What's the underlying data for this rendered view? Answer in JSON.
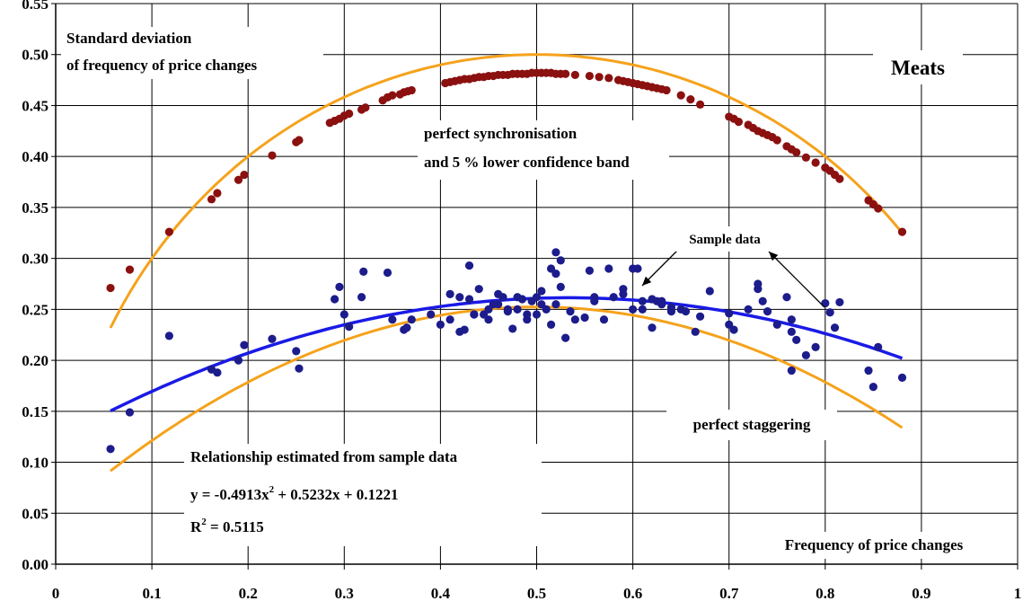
{
  "chart_data": {
    "type": "scatter",
    "title": "Meats",
    "ylabel_lines": [
      "Standard deviation",
      "of frequency of price changes"
    ],
    "xlabel": "Frequency of price changes",
    "xlim": [
      0,
      1
    ],
    "ylim": [
      0,
      0.55
    ],
    "grid": true,
    "x_ticks": [
      "0",
      "0.1",
      "0.2",
      "0.3",
      "0.4",
      "0.5",
      "0.6",
      "0.7",
      "0.8",
      "0.9",
      "1"
    ],
    "y_ticks": [
      "0.00",
      "0.05",
      "0.10",
      "0.15",
      "0.20",
      "0.25",
      "0.30",
      "0.35",
      "0.40",
      "0.45",
      "0.50",
      "0.55"
    ],
    "colors": {
      "sync_points": "#8b1010",
      "sample_points": "#1c1c8c",
      "theory_curves": "#f5a21b",
      "fit_curve": "#1a1ae6"
    },
    "annotations": {
      "sync_line1": "perfect synchronisation",
      "sync_line2": "and 5 % lower confidence band",
      "sample": "Sample data",
      "stagger": "perfect staggering",
      "fit_title": "Relationship estimated from sample data",
      "fit_eq_a": "y = -0.4913x",
      "fit_eq_sup": "2",
      "fit_eq_b": " + 0.5232x + 0.1221",
      "r2_a": "R",
      "r2_sup": "2",
      "r2_b": " = 0.5115"
    },
    "curves": {
      "synchronisation": "sqrt(x(1-x))",
      "staggering": "fitted",
      "fit": "-0.4913x^2 + 0.5232x + 0.1221",
      "x_range": [
        0.057,
        0.88
      ]
    },
    "series": [
      {
        "role": "synchronisation_band",
        "x": [
          0.057,
          0.077,
          0.118,
          0.162,
          0.168,
          0.19,
          0.196,
          0.225,
          0.25,
          0.253,
          0.285,
          0.29,
          0.295,
          0.3,
          0.305,
          0.318,
          0.322,
          0.34,
          0.345,
          0.35,
          0.358,
          0.362,
          0.366,
          0.37,
          0.405,
          0.41,
          0.415,
          0.42,
          0.425,
          0.43,
          0.435,
          0.44,
          0.445,
          0.45,
          0.455,
          0.46,
          0.465,
          0.47,
          0.475,
          0.48,
          0.485,
          0.49,
          0.495,
          0.5,
          0.505,
          0.51,
          0.515,
          0.52,
          0.525,
          0.53,
          0.54,
          0.555,
          0.565,
          0.575,
          0.585,
          0.59,
          0.595,
          0.6,
          0.605,
          0.61,
          0.615,
          0.62,
          0.625,
          0.63,
          0.635,
          0.65,
          0.66,
          0.67,
          0.7,
          0.705,
          0.71,
          0.72,
          0.725,
          0.73,
          0.735,
          0.74,
          0.745,
          0.75,
          0.76,
          0.765,
          0.77,
          0.78,
          0.79,
          0.8,
          0.805,
          0.81,
          0.815,
          0.845,
          0.85,
          0.855,
          0.88
        ],
        "y": [
          0.271,
          0.289,
          0.326,
          0.358,
          0.364,
          0.377,
          0.382,
          0.401,
          0.414,
          0.416,
          0.433,
          0.435,
          0.437,
          0.44,
          0.442,
          0.446,
          0.448,
          0.455,
          0.458,
          0.46,
          0.461,
          0.463,
          0.464,
          0.465,
          0.472,
          0.473,
          0.474,
          0.475,
          0.476,
          0.476,
          0.477,
          0.478,
          0.478,
          0.479,
          0.479,
          0.48,
          0.48,
          0.48,
          0.481,
          0.481,
          0.481,
          0.481,
          0.482,
          0.482,
          0.482,
          0.482,
          0.482,
          0.481,
          0.481,
          0.481,
          0.48,
          0.479,
          0.478,
          0.477,
          0.475,
          0.474,
          0.473,
          0.472,
          0.471,
          0.47,
          0.469,
          0.468,
          0.467,
          0.466,
          0.465,
          0.46,
          0.456,
          0.451,
          0.439,
          0.437,
          0.434,
          0.431,
          0.428,
          0.425,
          0.423,
          0.421,
          0.419,
          0.416,
          0.41,
          0.407,
          0.404,
          0.399,
          0.394,
          0.389,
          0.386,
          0.382,
          0.378,
          0.357,
          0.353,
          0.349,
          0.326
        ]
      },
      {
        "role": "sample_data",
        "x": [
          0.057,
          0.077,
          0.118,
          0.162,
          0.168,
          0.19,
          0.196,
          0.225,
          0.25,
          0.253,
          0.29,
          0.295,
          0.3,
          0.305,
          0.318,
          0.32,
          0.345,
          0.35,
          0.362,
          0.37,
          0.365,
          0.4,
          0.41,
          0.42,
          0.42,
          0.425,
          0.43,
          0.435,
          0.44,
          0.445,
          0.45,
          0.455,
          0.46,
          0.465,
          0.47,
          0.475,
          0.48,
          0.485,
          0.49,
          0.495,
          0.5,
          0.505,
          0.51,
          0.515,
          0.52,
          0.525,
          0.53,
          0.535,
          0.55,
          0.56,
          0.57,
          0.58,
          0.59,
          0.6,
          0.605,
          0.61,
          0.62,
          0.625,
          0.63,
          0.64,
          0.65,
          0.665,
          0.67,
          0.7,
          0.705,
          0.72,
          0.73,
          0.735,
          0.74,
          0.75,
          0.76,
          0.765,
          0.77,
          0.78,
          0.79,
          0.8,
          0.805,
          0.81,
          0.815,
          0.845,
          0.85,
          0.855,
          0.88,
          0.52,
          0.525,
          0.555,
          0.43,
          0.575,
          0.6,
          0.41,
          0.49,
          0.505,
          0.46,
          0.47,
          0.54,
          0.59,
          0.63,
          0.68,
          0.73,
          0.765,
          0.435,
          0.45,
          0.5,
          0.515,
          0.56,
          0.61,
          0.64,
          0.655,
          0.7,
          0.765,
          0.39,
          0.48,
          0.52,
          0.62
        ],
        "y": [
          0.113,
          0.149,
          0.224,
          0.191,
          0.188,
          0.2,
          0.215,
          0.221,
          0.209,
          0.192,
          0.26,
          0.272,
          0.245,
          0.233,
          0.262,
          0.287,
          0.286,
          0.24,
          0.23,
          0.24,
          0.232,
          0.235,
          0.24,
          0.228,
          0.262,
          0.23,
          0.293,
          0.245,
          0.27,
          0.245,
          0.24,
          0.255,
          0.255,
          0.262,
          0.25,
          0.231,
          0.25,
          0.26,
          0.245,
          0.258,
          0.262,
          0.268,
          0.25,
          0.29,
          0.306,
          0.298,
          0.222,
          0.248,
          0.242,
          0.258,
          0.24,
          0.262,
          0.265,
          0.25,
          0.29,
          0.25,
          0.232,
          0.258,
          0.255,
          0.248,
          0.25,
          0.228,
          0.243,
          0.235,
          0.23,
          0.25,
          0.27,
          0.258,
          0.248,
          0.235,
          0.262,
          0.228,
          0.22,
          0.205,
          0.213,
          0.256,
          0.247,
          0.232,
          0.257,
          0.19,
          0.174,
          0.213,
          0.183,
          0.285,
          0.272,
          0.288,
          0.26,
          0.29,
          0.29,
          0.265,
          0.24,
          0.255,
          0.265,
          0.248,
          0.24,
          0.27,
          0.258,
          0.268,
          0.275,
          0.19,
          0.245,
          0.25,
          0.245,
          0.235,
          0.262,
          0.258,
          0.252,
          0.248,
          0.246,
          0.24,
          0.245,
          0.262,
          0.255,
          0.26
        ]
      }
    ]
  }
}
